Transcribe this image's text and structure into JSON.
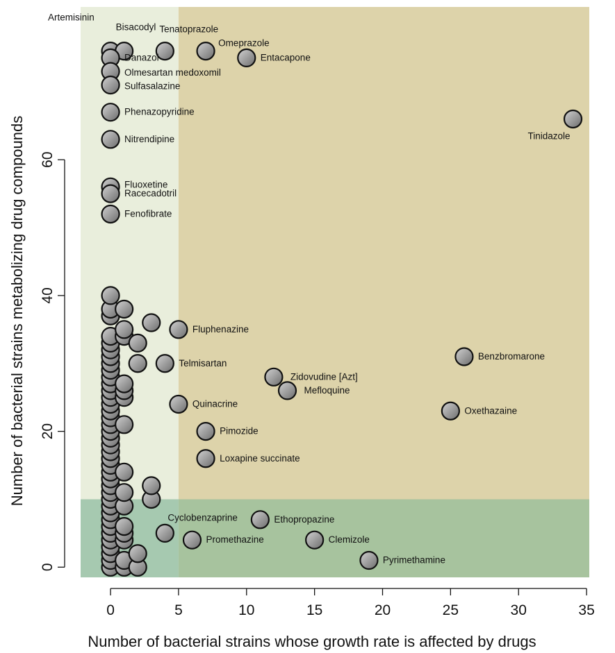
{
  "chart_data": {
    "type": "scatter",
    "title": "",
    "xlabel": "Number of bacterial strains whose growth rate is affected by drugs",
    "ylabel": "Number of bacterial strains metabolizing drug compounds",
    "xlim": [
      -2.2,
      35.2
    ],
    "ylim": [
      -1.5,
      82.5
    ],
    "xticks": [
      0,
      5,
      10,
      15,
      20,
      25,
      30,
      35
    ],
    "yticks": [
      0,
      20,
      40,
      60
    ],
    "grid": false,
    "legend": "none",
    "colors": {
      "region_left": "#e9eedc",
      "region_right": "#ddd3aa",
      "region_bottom": "#a7c39e",
      "region_bottom_left": "#a6c9b0",
      "point_fill": "#9a9a9a",
      "point_stroke": "#111111"
    },
    "regions": [
      {
        "x": [
          -2.2,
          5
        ],
        "y": [
          -1.5,
          82.5
        ],
        "name": "region_left"
      },
      {
        "x": [
          5,
          35.2
        ],
        "y": [
          -1.5,
          82.5
        ],
        "name": "region_right"
      },
      {
        "x": [
          5,
          35.2
        ],
        "y": [
          -1.5,
          10
        ],
        "name": "region_bottom"
      },
      {
        "x": [
          -2.2,
          5
        ],
        "y": [
          -1.5,
          10
        ],
        "name": "region_bottom_left"
      }
    ],
    "labeled_points": [
      {
        "label": "Artemisinin",
        "x": 0,
        "y": 76
      },
      {
        "label": "Bisacodyl",
        "x": 1,
        "y": 76
      },
      {
        "label": "Tenatoprazole",
        "x": 4,
        "y": 76
      },
      {
        "label": "Omeprazole",
        "x": 7,
        "y": 76
      },
      {
        "label": "Entacapone",
        "x": 10,
        "y": 75
      },
      {
        "label": "Danazol",
        "x": 0,
        "y": 75
      },
      {
        "label": "Olmesartan medoxomil",
        "x": 0,
        "y": 73
      },
      {
        "label": "Sulfasalazine",
        "x": 0,
        "y": 71
      },
      {
        "label": "Phenazopyridine",
        "x": 0,
        "y": 67
      },
      {
        "label": "Tinidazole",
        "x": 34,
        "y": 66
      },
      {
        "label": "Nitrendipine",
        "x": 0,
        "y": 63
      },
      {
        "label": "Fluoxetine",
        "x": 0,
        "y": 56
      },
      {
        "label": "Racecadotril",
        "x": 0,
        "y": 55
      },
      {
        "label": "Fenofibrate",
        "x": 0,
        "y": 52
      },
      {
        "label": "Fluphenazine",
        "x": 5,
        "y": 35
      },
      {
        "label": "Benzbromarone",
        "x": 26,
        "y": 31
      },
      {
        "label": "Telmisartan",
        "x": 4,
        "y": 30
      },
      {
        "label": "Zidovudine [Azt]",
        "x": 12,
        "y": 28
      },
      {
        "label": "Mefloquine",
        "x": 13,
        "y": 26
      },
      {
        "label": "Quinacrine",
        "x": 5,
        "y": 24
      },
      {
        "label": "Oxethazaine",
        "x": 25,
        "y": 23
      },
      {
        "label": "Pimozide",
        "x": 7,
        "y": 20
      },
      {
        "label": "Loxapine succinate",
        "x": 7,
        "y": 16
      },
      {
        "label": "Cyclobenzaprine",
        "x": 4,
        "y": 5
      },
      {
        "label": "Ethopropazine",
        "x": 11,
        "y": 7
      },
      {
        "label": "Promethazine",
        "x": 6,
        "y": 4
      },
      {
        "label": "Clemizole",
        "x": 15,
        "y": 4
      },
      {
        "label": "Pyrimethamine",
        "x": 19,
        "y": 1
      }
    ],
    "unlabeled_points": [
      [
        0,
        0
      ],
      [
        0,
        1
      ],
      [
        0,
        2
      ],
      [
        0,
        3
      ],
      [
        0,
        4
      ],
      [
        0,
        5
      ],
      [
        0,
        6
      ],
      [
        0,
        7
      ],
      [
        0,
        8
      ],
      [
        0,
        9
      ],
      [
        0,
        10
      ],
      [
        0,
        11
      ],
      [
        0,
        12
      ],
      [
        0,
        13
      ],
      [
        0,
        14
      ],
      [
        0,
        15
      ],
      [
        0,
        16
      ],
      [
        0,
        17
      ],
      [
        0,
        18
      ],
      [
        0,
        19
      ],
      [
        0,
        20
      ],
      [
        0,
        21
      ],
      [
        0,
        22
      ],
      [
        0,
        23
      ],
      [
        0,
        24
      ],
      [
        0,
        25
      ],
      [
        0,
        26
      ],
      [
        0,
        27
      ],
      [
        0,
        28
      ],
      [
        0,
        29
      ],
      [
        0,
        30
      ],
      [
        0,
        31
      ],
      [
        0,
        32
      ],
      [
        0,
        33
      ],
      [
        0,
        34
      ],
      [
        0,
        37
      ],
      [
        0,
        38
      ],
      [
        0,
        40
      ],
      [
        1,
        0
      ],
      [
        1,
        1
      ],
      [
        1,
        4
      ],
      [
        1,
        5
      ],
      [
        1,
        6
      ],
      [
        1,
        9
      ],
      [
        1,
        11
      ],
      [
        1,
        14
      ],
      [
        1,
        21
      ],
      [
        1,
        25
      ],
      [
        1,
        26
      ],
      [
        1,
        27
      ],
      [
        1,
        34
      ],
      [
        1,
        35
      ],
      [
        1,
        38
      ],
      [
        2,
        0
      ],
      [
        2,
        2
      ],
      [
        2,
        30
      ],
      [
        2,
        33
      ],
      [
        3,
        10
      ],
      [
        3,
        12
      ],
      [
        3,
        36
      ]
    ]
  }
}
